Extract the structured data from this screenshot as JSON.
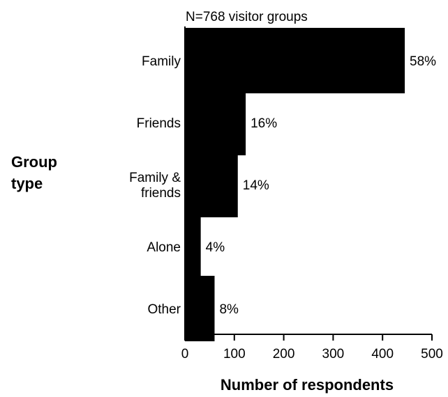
{
  "chart_data": {
    "type": "bar",
    "orientation": "horizontal",
    "annotation": "N=768 visitor groups",
    "xlabel": "Number of respondents",
    "ylabel": "Group type",
    "xlim": [
      0,
      500
    ],
    "xticks": [
      0,
      100,
      200,
      300,
      400,
      500
    ],
    "grid": false,
    "categories": [
      {
        "lines": [
          "Family"
        ]
      },
      {
        "lines": [
          "Friends"
        ]
      },
      {
        "lines": [
          "Family &",
          "friends"
        ]
      },
      {
        "lines": [
          "Alone"
        ]
      },
      {
        "lines": [
          "Other"
        ]
      }
    ],
    "values": [
      445,
      123,
      107,
      32,
      60
    ],
    "value_labels": [
      "58%",
      "16%",
      "14%",
      "4%",
      "8%"
    ],
    "bar_color": "#000000"
  }
}
